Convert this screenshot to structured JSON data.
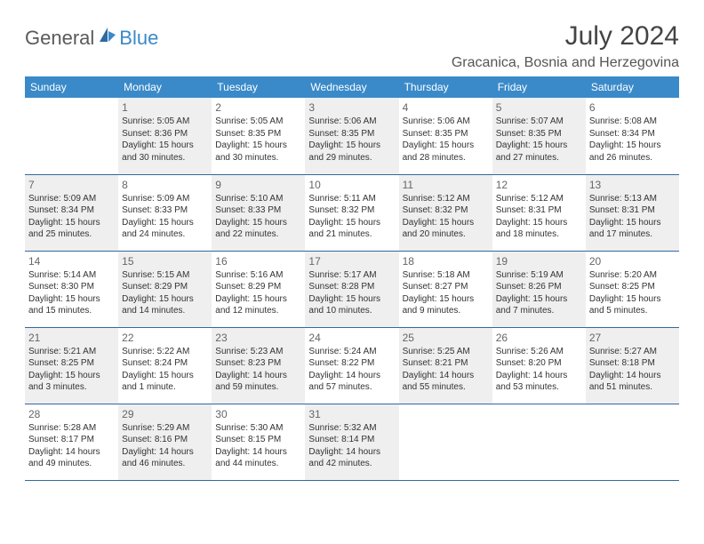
{
  "brand": {
    "general": "General",
    "blue": "Blue"
  },
  "title": "July 2024",
  "location": "Gracanica, Bosnia and Herzegovina",
  "colors": {
    "headerBg": "#3a8ac9",
    "headerText": "#ffffff",
    "border": "#2f6aa0",
    "shade": "#efefef",
    "text": "#333333"
  },
  "weekdays": [
    "Sunday",
    "Monday",
    "Tuesday",
    "Wednesday",
    "Thursday",
    "Friday",
    "Saturday"
  ],
  "weeks": [
    [
      null,
      {
        "n": "1",
        "r": "5:05 AM",
        "s": "8:36 PM",
        "d": "15 hours and 30 minutes."
      },
      {
        "n": "2",
        "r": "5:05 AM",
        "s": "8:35 PM",
        "d": "15 hours and 30 minutes."
      },
      {
        "n": "3",
        "r": "5:06 AM",
        "s": "8:35 PM",
        "d": "15 hours and 29 minutes."
      },
      {
        "n": "4",
        "r": "5:06 AM",
        "s": "8:35 PM",
        "d": "15 hours and 28 minutes."
      },
      {
        "n": "5",
        "r": "5:07 AM",
        "s": "8:35 PM",
        "d": "15 hours and 27 minutes."
      },
      {
        "n": "6",
        "r": "5:08 AM",
        "s": "8:34 PM",
        "d": "15 hours and 26 minutes."
      }
    ],
    [
      {
        "n": "7",
        "r": "5:09 AM",
        "s": "8:34 PM",
        "d": "15 hours and 25 minutes."
      },
      {
        "n": "8",
        "r": "5:09 AM",
        "s": "8:33 PM",
        "d": "15 hours and 24 minutes."
      },
      {
        "n": "9",
        "r": "5:10 AM",
        "s": "8:33 PM",
        "d": "15 hours and 22 minutes."
      },
      {
        "n": "10",
        "r": "5:11 AM",
        "s": "8:32 PM",
        "d": "15 hours and 21 minutes."
      },
      {
        "n": "11",
        "r": "5:12 AM",
        "s": "8:32 PM",
        "d": "15 hours and 20 minutes."
      },
      {
        "n": "12",
        "r": "5:12 AM",
        "s": "8:31 PM",
        "d": "15 hours and 18 minutes."
      },
      {
        "n": "13",
        "r": "5:13 AM",
        "s": "8:31 PM",
        "d": "15 hours and 17 minutes."
      }
    ],
    [
      {
        "n": "14",
        "r": "5:14 AM",
        "s": "8:30 PM",
        "d": "15 hours and 15 minutes."
      },
      {
        "n": "15",
        "r": "5:15 AM",
        "s": "8:29 PM",
        "d": "15 hours and 14 minutes."
      },
      {
        "n": "16",
        "r": "5:16 AM",
        "s": "8:29 PM",
        "d": "15 hours and 12 minutes."
      },
      {
        "n": "17",
        "r": "5:17 AM",
        "s": "8:28 PM",
        "d": "15 hours and 10 minutes."
      },
      {
        "n": "18",
        "r": "5:18 AM",
        "s": "8:27 PM",
        "d": "15 hours and 9 minutes."
      },
      {
        "n": "19",
        "r": "5:19 AM",
        "s": "8:26 PM",
        "d": "15 hours and 7 minutes."
      },
      {
        "n": "20",
        "r": "5:20 AM",
        "s": "8:25 PM",
        "d": "15 hours and 5 minutes."
      }
    ],
    [
      {
        "n": "21",
        "r": "5:21 AM",
        "s": "8:25 PM",
        "d": "15 hours and 3 minutes."
      },
      {
        "n": "22",
        "r": "5:22 AM",
        "s": "8:24 PM",
        "d": "15 hours and 1 minute."
      },
      {
        "n": "23",
        "r": "5:23 AM",
        "s": "8:23 PM",
        "d": "14 hours and 59 minutes."
      },
      {
        "n": "24",
        "r": "5:24 AM",
        "s": "8:22 PM",
        "d": "14 hours and 57 minutes."
      },
      {
        "n": "25",
        "r": "5:25 AM",
        "s": "8:21 PM",
        "d": "14 hours and 55 minutes."
      },
      {
        "n": "26",
        "r": "5:26 AM",
        "s": "8:20 PM",
        "d": "14 hours and 53 minutes."
      },
      {
        "n": "27",
        "r": "5:27 AM",
        "s": "8:18 PM",
        "d": "14 hours and 51 minutes."
      }
    ],
    [
      {
        "n": "28",
        "r": "5:28 AM",
        "s": "8:17 PM",
        "d": "14 hours and 49 minutes."
      },
      {
        "n": "29",
        "r": "5:29 AM",
        "s": "8:16 PM",
        "d": "14 hours and 46 minutes."
      },
      {
        "n": "30",
        "r": "5:30 AM",
        "s": "8:15 PM",
        "d": "14 hours and 44 minutes."
      },
      {
        "n": "31",
        "r": "5:32 AM",
        "s": "8:14 PM",
        "d": "14 hours and 42 minutes."
      },
      null,
      null,
      null
    ]
  ],
  "labels": {
    "sunrise": "Sunrise: ",
    "sunset": "Sunset: ",
    "daylight": "Daylight: "
  }
}
